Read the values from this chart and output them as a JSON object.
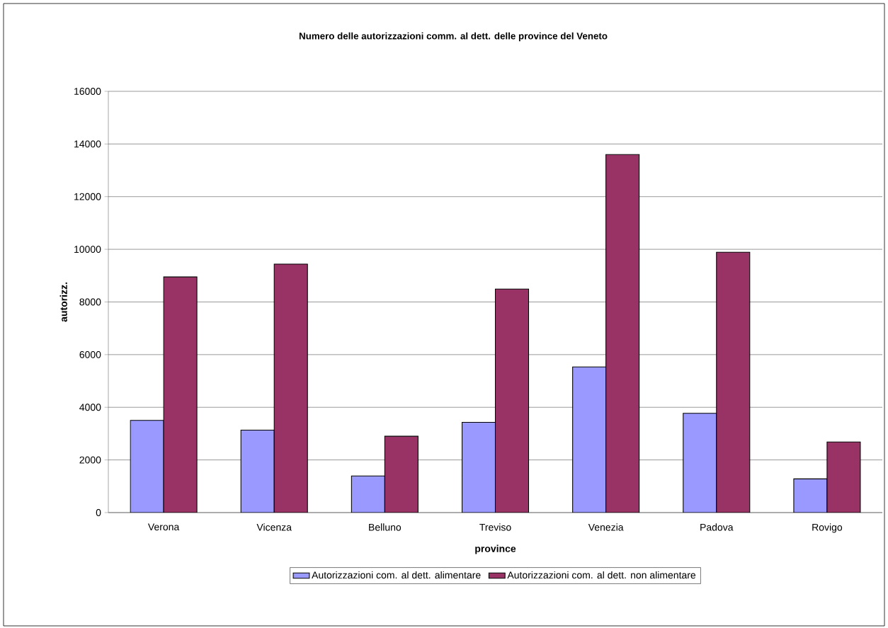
{
  "chart_data": {
    "type": "bar",
    "title": "Numero delle autorizzazioni comm. al dett. delle province del Veneto",
    "xlabel": "province",
    "ylabel": "autorizz.",
    "categories": [
      "Verona",
      "Vicenza",
      "Belluno",
      "Treviso",
      "Venezia",
      "Padova",
      "Rovigo"
    ],
    "series": [
      {
        "name": "Autorizzazioni com. al dett. alimentare",
        "color": "#9999ff",
        "values": [
          3500,
          3130,
          1390,
          3430,
          5530,
          3770,
          1280
        ]
      },
      {
        "name": "Autorizzazioni com. al dett. non alimentare",
        "color": "#993366",
        "values": [
          8950,
          9440,
          2900,
          8490,
          13600,
          9890,
          2680
        ]
      }
    ],
    "ylim": [
      0,
      16000
    ],
    "yticks": [
      0,
      2000,
      4000,
      6000,
      8000,
      10000,
      12000,
      14000,
      16000
    ],
    "grid": "y",
    "legend": "bottom"
  }
}
